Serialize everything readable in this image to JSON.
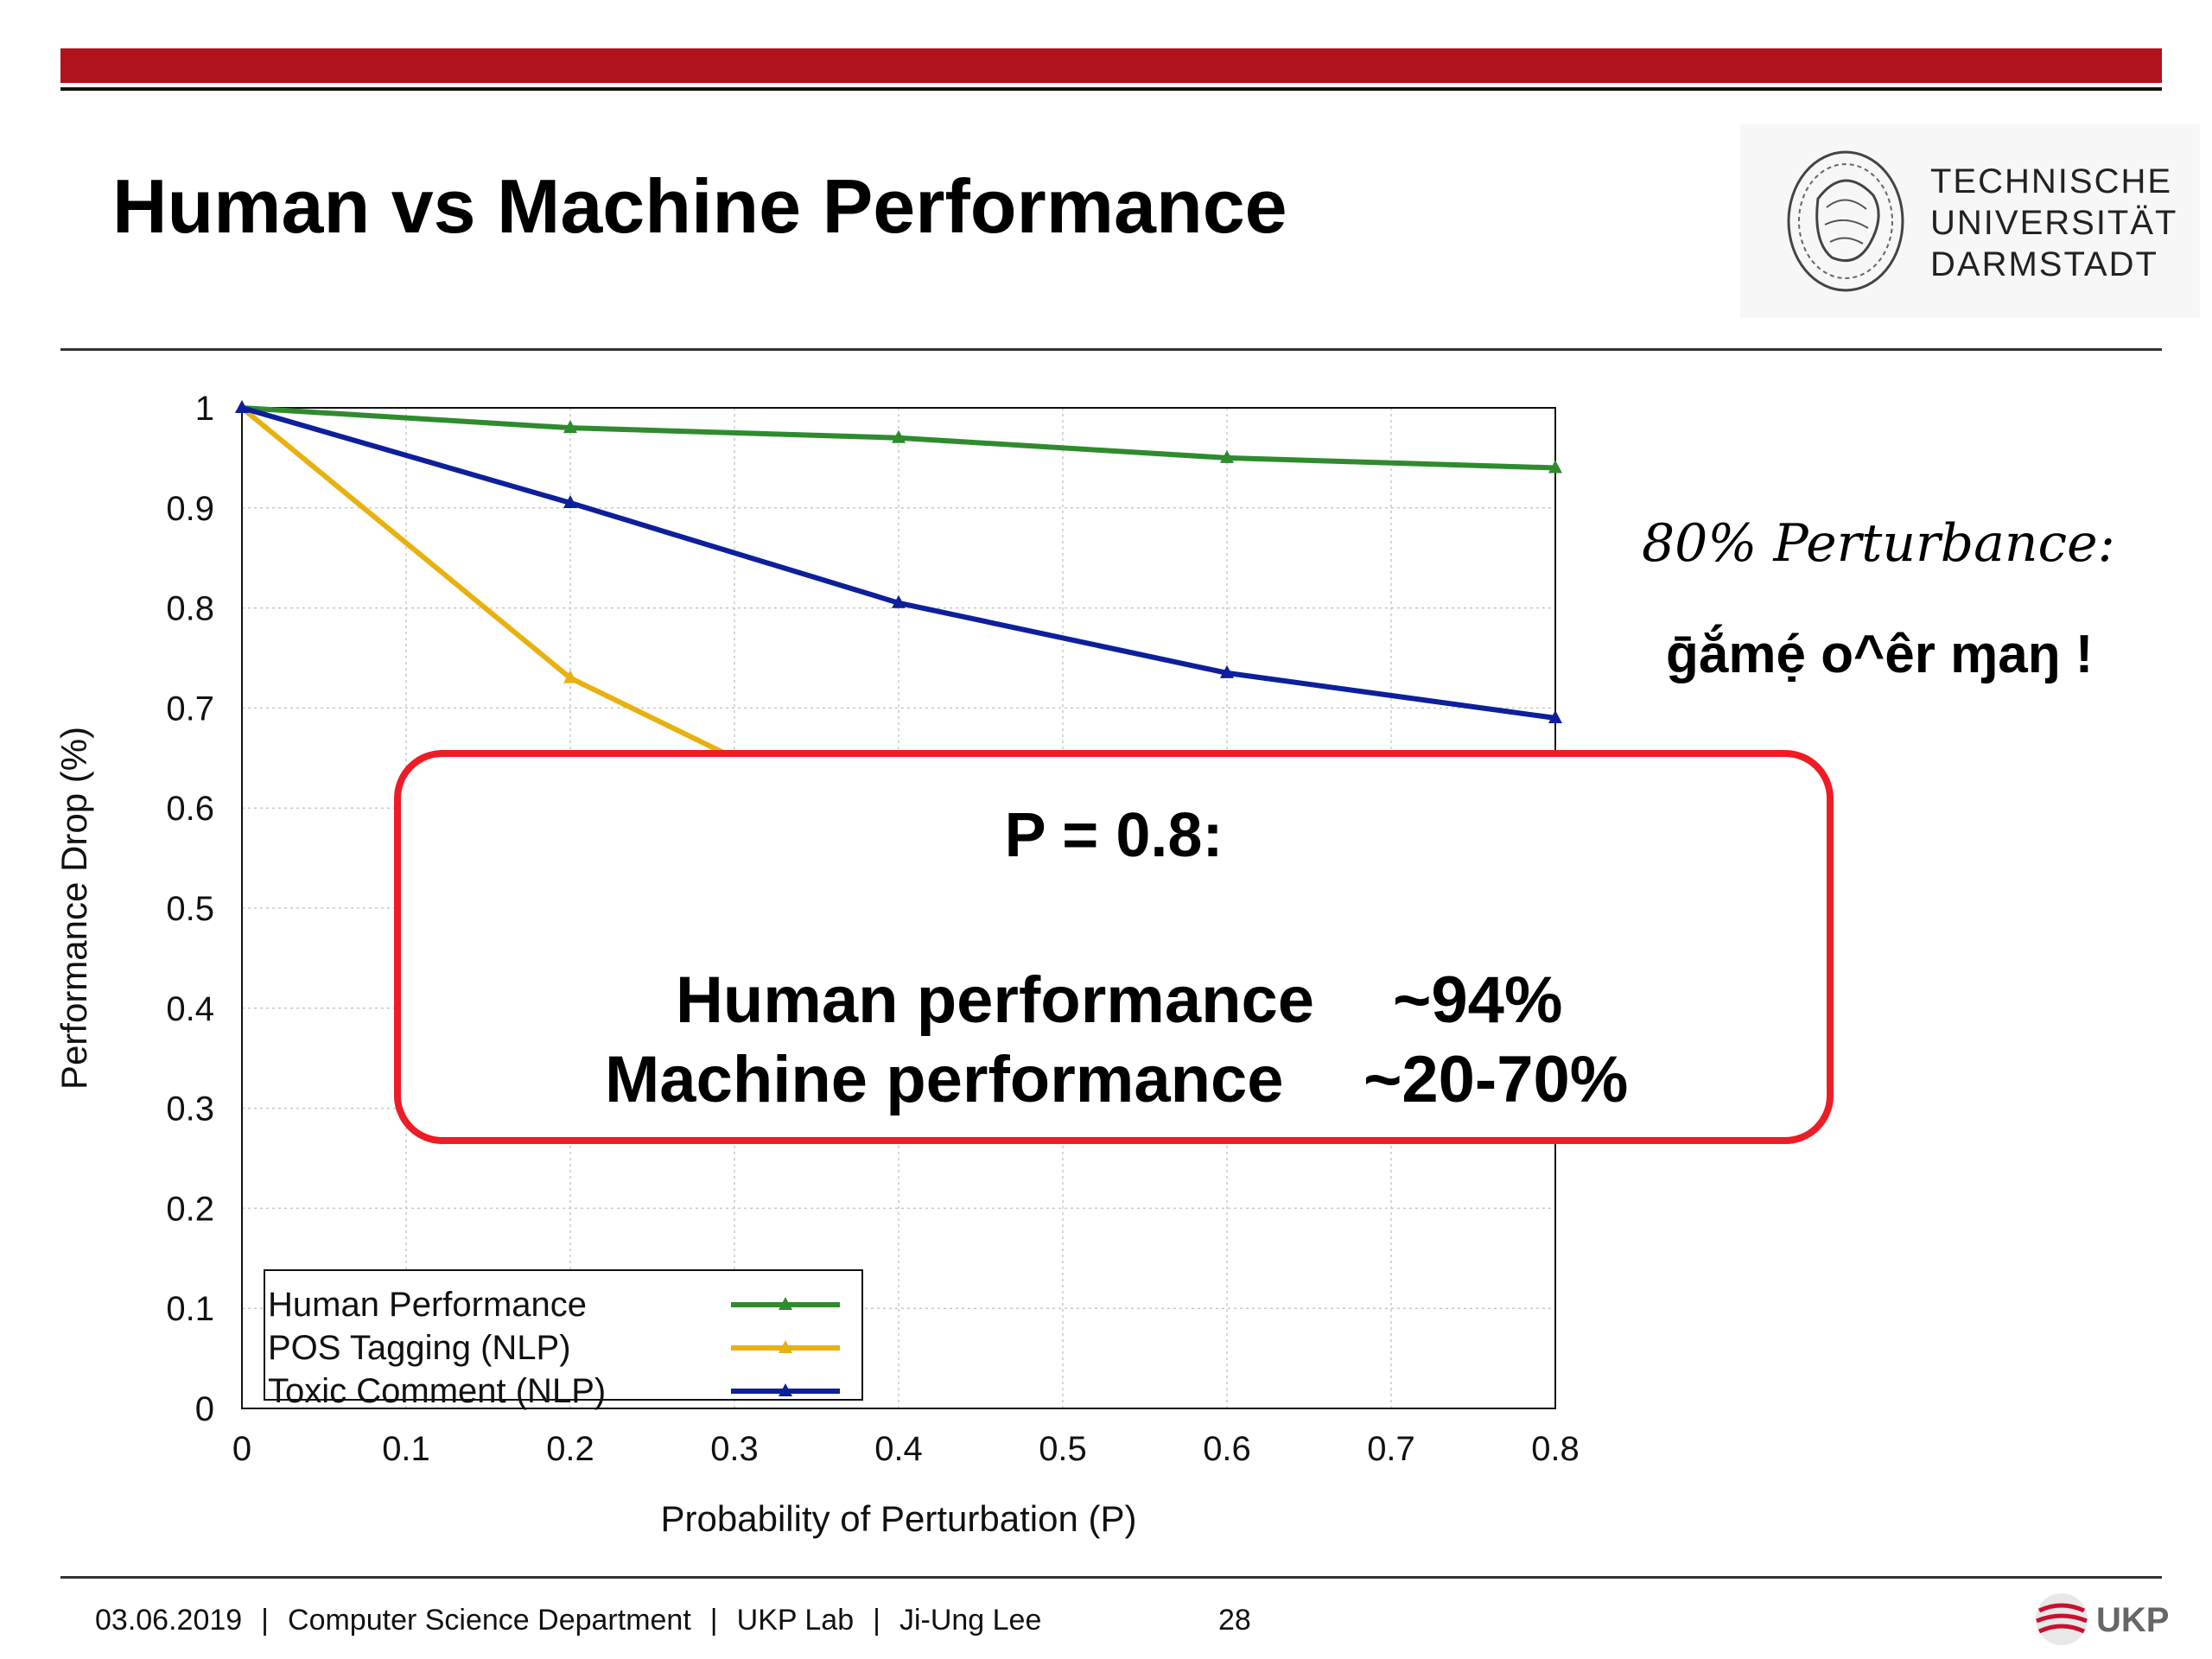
{
  "title": "Human vs Machine Performance",
  "logo": {
    "lines": [
      "TECHNISCHE",
      "UNIVERSITÄT",
      "DARMSTADT"
    ]
  },
  "side_note": {
    "line1": "80% Perturbance:",
    "line2": "ḡắmẹ́ o^êr ɱaŋ !"
  },
  "callout": {
    "title": "P = 0.8:",
    "rows": [
      {
        "label": "Human performance",
        "value": "~94%"
      },
      {
        "label": "Machine performance",
        "value": "~20-70%"
      }
    ]
  },
  "footer": {
    "date": "03.06.2019",
    "department": "Computer Science Department",
    "lab": "UKP Lab",
    "author": "Ji-Ung Lee",
    "page": "28",
    "ukp_logo_text": "UKP"
  },
  "colors": {
    "brand_red": "#b2111e",
    "callout_border": "#ee1c25",
    "human": "#2e8b2e",
    "pos": "#e8b10f",
    "toxic": "#0d1f9a"
  },
  "chart_data": {
    "type": "line",
    "xlabel": "Probability of Perturbation (P)",
    "ylabel": "Performance Drop (%)",
    "xlim": [
      0,
      0.8
    ],
    "ylim": [
      0,
      1
    ],
    "xticks": [
      "0",
      "0.1",
      "0.2",
      "0.3",
      "0.4",
      "0.5",
      "0.6",
      "0.7",
      "0.8"
    ],
    "yticks": [
      "0",
      "0.1",
      "0.2",
      "0.3",
      "0.4",
      "0.5",
      "0.6",
      "0.7",
      "0.8",
      "0.9",
      "1"
    ],
    "grid": true,
    "legend_position": "bottom-left",
    "series": [
      {
        "name": "Human Performance",
        "color": "#2e8b2e",
        "x": [
          0,
          0.2,
          0.4,
          0.6,
          0.8
        ],
        "y": [
          1.0,
          0.98,
          0.97,
          0.95,
          0.94
        ]
      },
      {
        "name": "POS Tagging (NLP)",
        "color": "#e8b10f",
        "x": [
          0,
          0.2,
          0.4
        ],
        "y": [
          1.0,
          0.73,
          0.57
        ]
      },
      {
        "name": "Toxic Comment (NLP)",
        "color": "#0d1f9a",
        "x": [
          0,
          0.2,
          0.4,
          0.6,
          0.8
        ],
        "y": [
          1.0,
          0.905,
          0.805,
          0.735,
          0.69
        ]
      }
    ]
  }
}
